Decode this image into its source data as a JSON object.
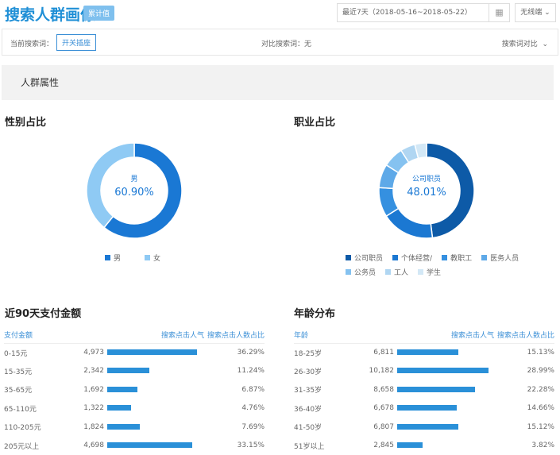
{
  "header": {
    "title": "搜索人群画像",
    "badge": "累计值",
    "date_range": "最近7天（2018-05-16~2018-05-22）",
    "calendar_icon": "calendar-icon",
    "device": "无线端"
  },
  "search": {
    "current_label": "当前搜索词：",
    "current_keyword": "开关插座",
    "compare_label": "对比搜索词：无",
    "compare_toggle": "搜索词对比"
  },
  "section_title": "人群属性",
  "gender": {
    "title": "性别占比",
    "center_label": "男",
    "center_value": "60.90%",
    "slices": [
      {
        "name": "男",
        "value": 60.9,
        "color": "#1a78d4"
      },
      {
        "name": "女",
        "value": 39.1,
        "color": "#8fcaf4"
      }
    ]
  },
  "occupation": {
    "title": "职业占比",
    "center_label": "公司职员",
    "center_value": "48.01%",
    "slices": [
      {
        "name": "公司职员",
        "value": 48.01,
        "color": "#0d5aa7"
      },
      {
        "name": "个体经营/",
        "value": 18,
        "color": "#1b78d2"
      },
      {
        "name": "教职工",
        "value": 10,
        "color": "#3590e0"
      },
      {
        "name": "医务人员",
        "value": 8,
        "color": "#5ea9e8"
      },
      {
        "name": "公务员",
        "value": 7,
        "color": "#85c2f0"
      },
      {
        "name": "工人",
        "value": 5,
        "color": "#b0d6f2"
      },
      {
        "name": "学生",
        "value": 3.99,
        "color": "#d3e8f6"
      }
    ]
  },
  "pay": {
    "title": "近90天支付金额",
    "headers": [
      "支付金额",
      "搜索点击人气",
      "搜索点击人数占比"
    ],
    "rows": [
      [
        "0-15元",
        4973,
        "4,973",
        "36.29%"
      ],
      [
        "15-35元",
        2342,
        "2,342",
        "11.24%"
      ],
      [
        "35-65元",
        1692,
        "1,692",
        "6.87%"
      ],
      [
        "65-110元",
        1322,
        "1,322",
        "4.76%"
      ],
      [
        "110-205元",
        1824,
        "1,824",
        "7.69%"
      ],
      [
        "205元以上",
        4698,
        "4,698",
        "33.15%"
      ]
    ]
  },
  "age": {
    "title": "年龄分布",
    "headers": [
      "年龄",
      "搜索点击人气",
      "搜索点击人数占比"
    ],
    "rows": [
      [
        "18-25岁",
        6811,
        "6,811",
        "15.13%"
      ],
      [
        "26-30岁",
        10182,
        "10,182",
        "28.99%"
      ],
      [
        "31-35岁",
        8658,
        "8,658",
        "22.28%"
      ],
      [
        "36-40岁",
        6678,
        "6,678",
        "14.66%"
      ],
      [
        "41-50岁",
        6807,
        "6,807",
        "15.12%"
      ],
      [
        "51岁以上",
        2845,
        "2,845",
        "3.82%"
      ]
    ]
  }
}
